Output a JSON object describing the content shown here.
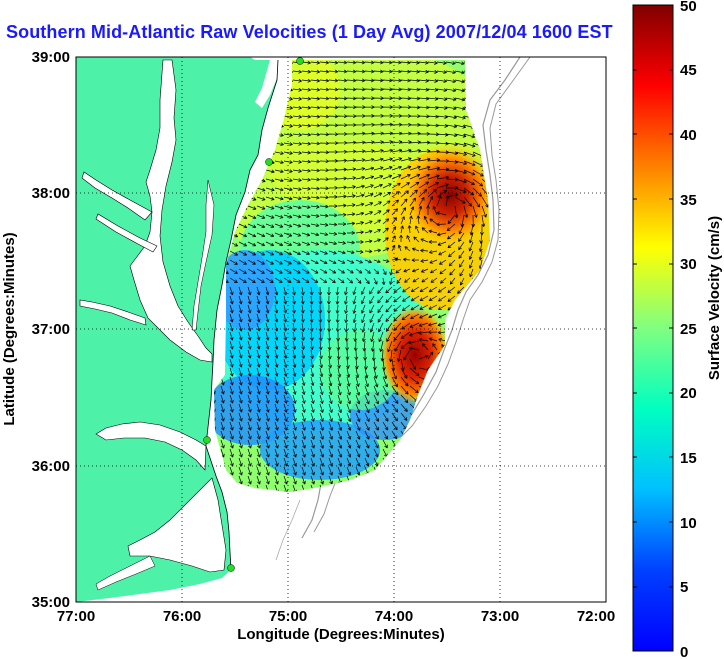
{
  "title": "Southern Mid-Atlantic Raw Velocities (1 Day Avg) 2007/12/04 1600 EST",
  "xlabel": "Longitude (Degrees:Minutes)",
  "ylabel": "Latitude (Degrees:Minutes)",
  "x_ticks": [
    "77:00",
    "76:00",
    "75:00",
    "74:00",
    "73:00",
    "72:00"
  ],
  "y_ticks": [
    "39:00",
    "38:00",
    "37:00",
    "36:00",
    "35:00"
  ],
  "colorbar": {
    "label": "Surface Velocity (cm/s)",
    "ticks": [
      "0",
      "5",
      "10",
      "15",
      "20",
      "25",
      "30",
      "35",
      "40",
      "45",
      "50"
    ],
    "range": [
      0,
      50
    ],
    "colormap": "jet"
  },
  "colors": {
    "land": "#4df2a8",
    "title": "#1a1aff",
    "station": "#22dd22",
    "bathymetry": "#999999"
  }
}
